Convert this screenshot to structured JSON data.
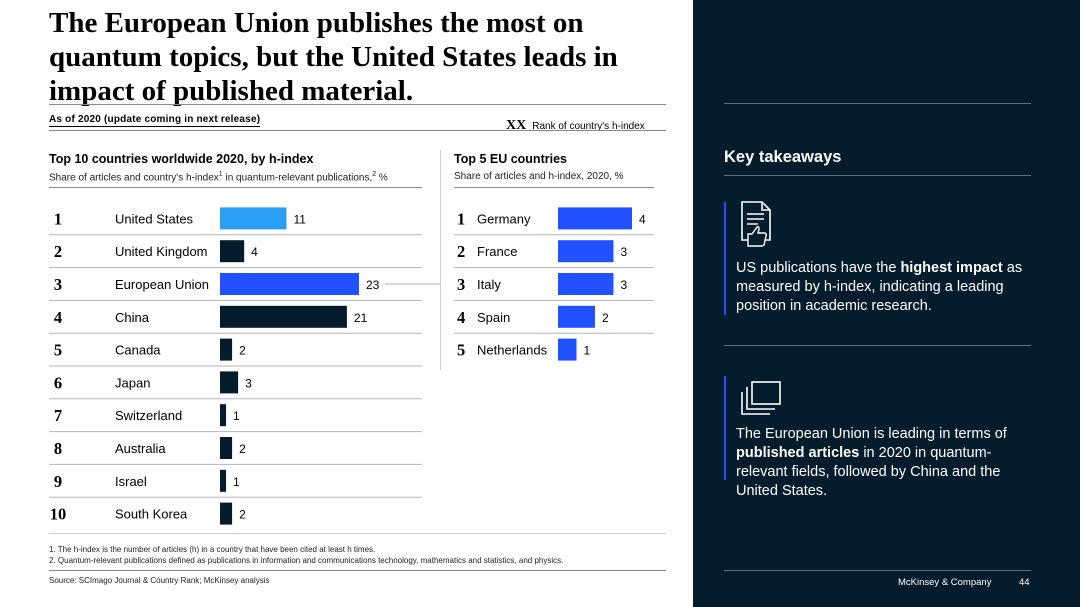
{
  "title": "The European Union publishes the most on quantum topics, but the United States leads in impact of published material.",
  "as_of": "As of 2020 (update coming in next release)",
  "rank_legend": {
    "marker": "XX",
    "label": "Rank of country's h-index"
  },
  "left_chart": {
    "title": "Top 10 countries worldwide 2020, by h-index",
    "subtitle_parts": [
      "Share of articles and country's h-index",
      "1",
      " in quantum-relevant publications,",
      "2",
      " %"
    ]
  },
  "right_chart": {
    "title": "Top 5 EU countries",
    "subtitle": "Share of articles and h-index, 2020, %"
  },
  "chart_data": [
    {
      "type": "bar",
      "orientation": "horizontal",
      "title": "Top 10 countries worldwide 2020, by h-index",
      "categories": [
        "United States",
        "United Kingdom",
        "European Union",
        "China",
        "Canada",
        "Japan",
        "Switzerland",
        "Australia",
        "Israel",
        "South Korea"
      ],
      "ranks": [
        "1",
        "2",
        "3",
        "4",
        "5",
        "6",
        "7",
        "8",
        "9",
        "10"
      ],
      "values": [
        11,
        4,
        23,
        21,
        2,
        3,
        1,
        2,
        1,
        2
      ],
      "bar_colors": [
        "#2a9df4",
        "#051c2c",
        "#2251ff",
        "#051c2c",
        "#051c2c",
        "#051c2c",
        "#051c2c",
        "#051c2c",
        "#051c2c",
        "#051c2c"
      ]
    },
    {
      "type": "bar",
      "orientation": "horizontal",
      "title": "Top 5 EU countries",
      "categories": [
        "Germany",
        "France",
        "Italy",
        "Spain",
        "Netherlands"
      ],
      "ranks": [
        "1",
        "2",
        "3",
        "4",
        "5"
      ],
      "values": [
        4,
        3,
        3,
        2,
        1
      ],
      "bar_colors": [
        "#2251ff",
        "#2251ff",
        "#2251ff",
        "#2251ff",
        "#2251ff"
      ]
    }
  ],
  "footnotes": [
    "1. The h-index is the number of articles (h) in a country that have been cited at least h times.",
    "2. Quantum-relevant publications defined as publications in information and communications technology, mathematics and statistics, and physics."
  ],
  "source": "Source: SCImago Journal & Country Rank; McKinsey analysis",
  "panel": {
    "title": "Key takeaways",
    "takeaway1": {
      "pre": "US publications have the ",
      "bold": "highest impact",
      "post": " as measured by h-index, indicating a leading position in academic research."
    },
    "takeaway2": {
      "pre": "The European Union is leading in terms of ",
      "bold": "published articles",
      "post": " in 2020 in quantum-relevant fields, followed by China and the United States."
    },
    "brand": "McKinsey & Company",
    "page": "44"
  },
  "colors": {
    "navy": "#051c2c",
    "accent_blue": "#2251ff",
    "light_blue": "#2a9df4"
  }
}
